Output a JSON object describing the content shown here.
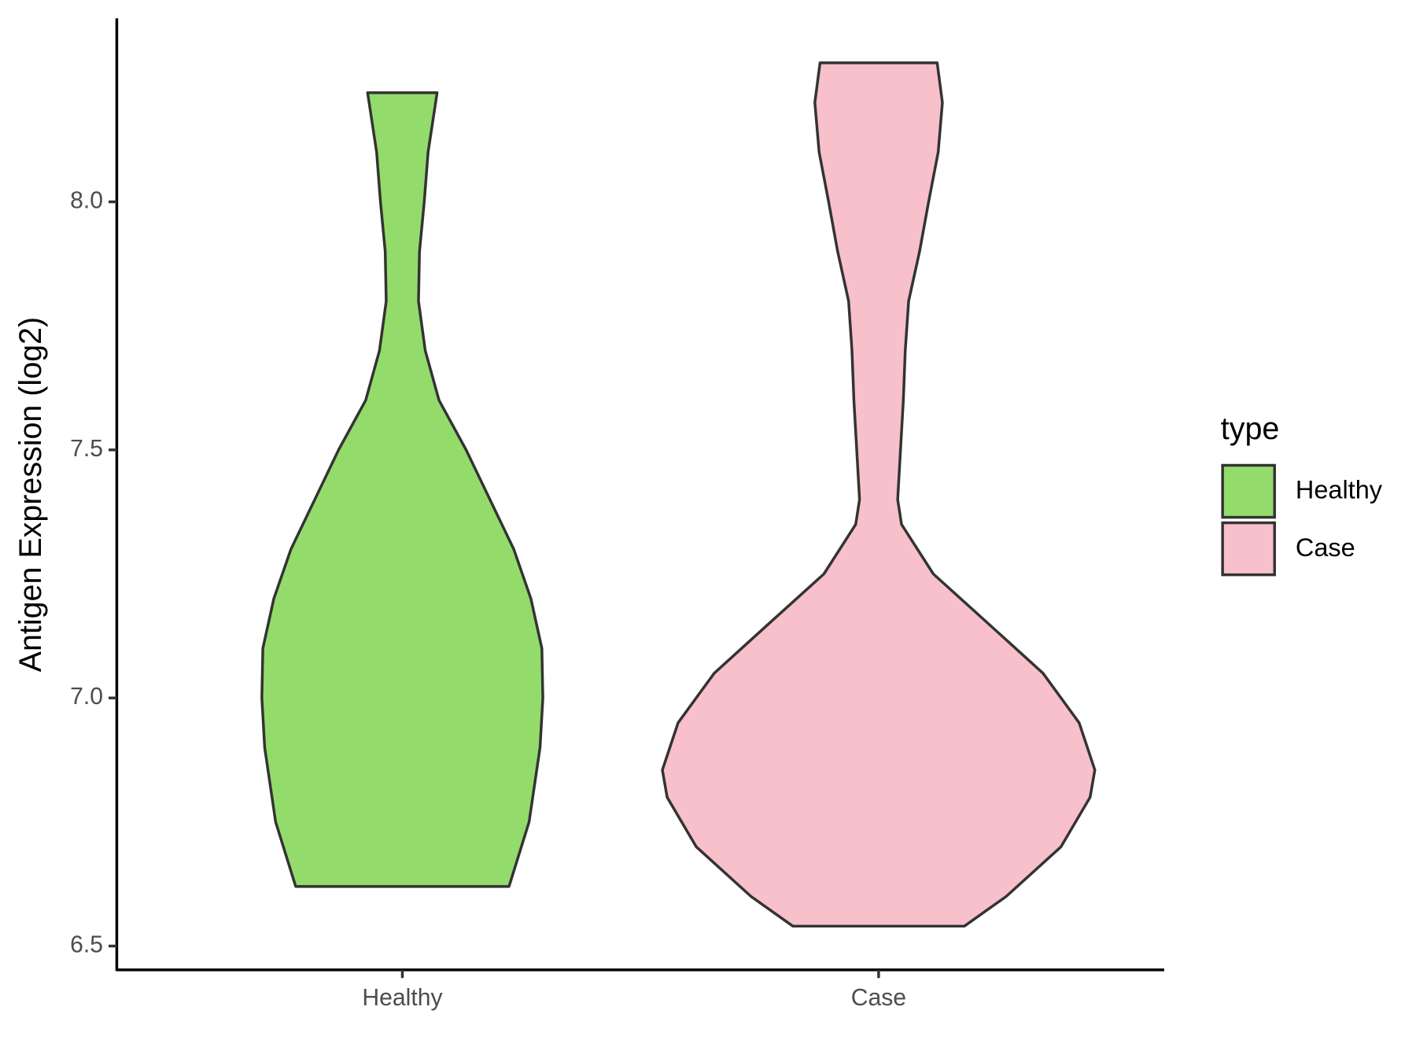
{
  "chart_data": {
    "type": "violin",
    "y_label": "Antigen Expression (log2)",
    "categories": [
      "Healthy",
      "Case"
    ],
    "ylim": [
      6.452,
      8.37
    ],
    "yticks": [
      {
        "value": 6.5,
        "label": "6.5"
      },
      {
        "value": 7,
        "label": "7.0"
      },
      {
        "value": 7.5,
        "label": "7.5"
      },
      {
        "value": 8,
        "label": "8.0"
      }
    ],
    "legend_title": "type",
    "series": [
      {
        "name": "Healthy",
        "color": "#93dc6b",
        "y": [
          6.62,
          6.75,
          6.9,
          7.0,
          7.1,
          7.2,
          7.3,
          7.4,
          7.5,
          7.6,
          7.7,
          7.8,
          7.9,
          8.0,
          8.1,
          8.22
        ],
        "half_width": [
          0.224,
          0.266,
          0.289,
          0.295,
          0.293,
          0.27,
          0.234,
          0.184,
          0.134,
          0.077,
          0.048,
          0.034,
          0.036,
          0.046,
          0.054,
          0.073
        ]
      },
      {
        "name": "Case",
        "color": "#f7c0cb",
        "y": [
          6.54,
          6.6,
          6.7,
          6.8,
          6.855,
          6.95,
          7.05,
          7.15,
          7.25,
          7.35,
          7.4,
          7.5,
          7.6,
          7.7,
          7.8,
          7.9,
          8.0,
          8.1,
          8.2,
          8.28
        ],
        "half_width": [
          0.18,
          0.268,
          0.383,
          0.444,
          0.454,
          0.421,
          0.345,
          0.23,
          0.115,
          0.048,
          0.04,
          0.046,
          0.052,
          0.056,
          0.063,
          0.086,
          0.105,
          0.125,
          0.134,
          0.123
        ]
      }
    ]
  }
}
